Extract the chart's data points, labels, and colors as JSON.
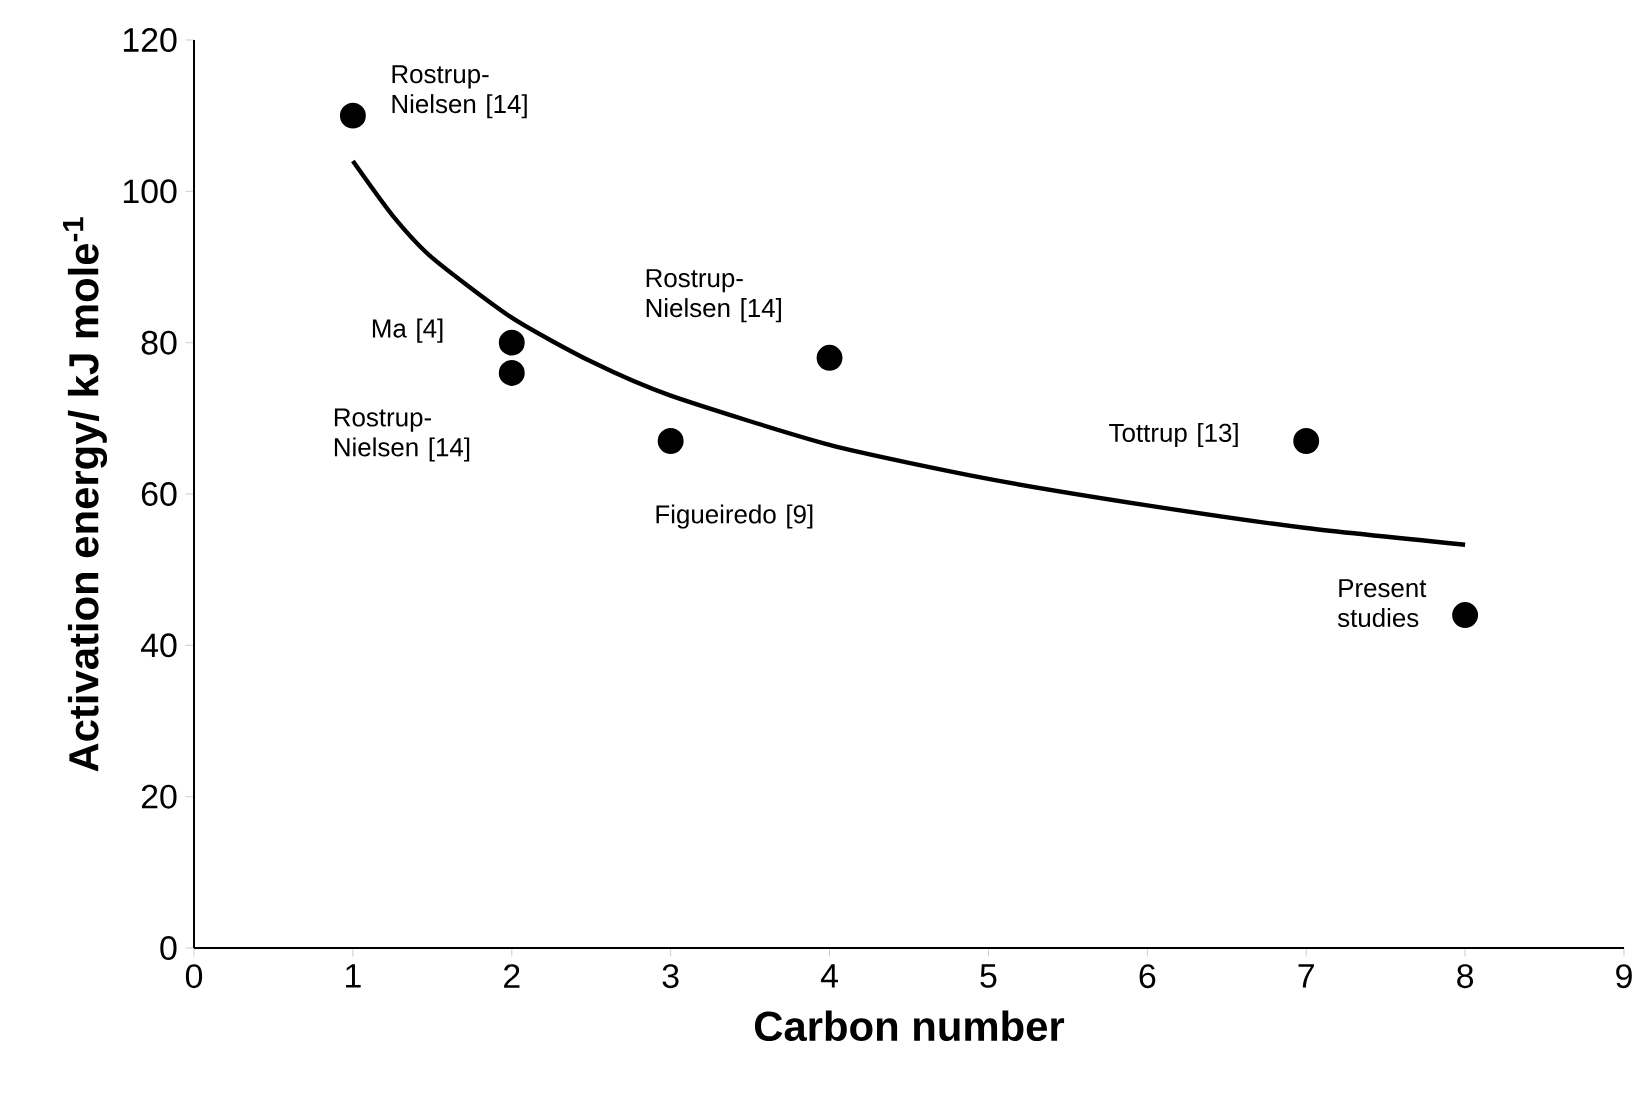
{
  "chart_data": {
    "type": "scatter",
    "xlabel": "Carbon number",
    "ylabel": "Activation energy/ kJ mole$^{-1}$",
    "xlim": [
      0,
      9
    ],
    "xticks": [
      0,
      1,
      2,
      3,
      4,
      5,
      6,
      7,
      8,
      9
    ],
    "ylim": [
      0,
      120
    ],
    "yticks": [
      0,
      20,
      40,
      60,
      80,
      100,
      120
    ],
    "grid": false,
    "series": [
      {
        "color": "#000000",
        "marker": "circle",
        "x": [
          1,
          2,
          2,
          3,
          4,
          7,
          8
        ],
        "values": [
          110,
          80,
          76,
          67,
          78,
          67,
          44
        ]
      },
      {
        "type": "line",
        "marker": "none",
        "color": "#000000",
        "x": [
          1,
          1.25,
          1.5,
          2,
          2.5,
          3,
          4,
          5,
          6,
          7,
          8
        ],
        "values": [
          104,
          96.8,
          91.2,
          83.3,
          77.5,
          73,
          66.5,
          62,
          58.5,
          55.5,
          53.3
        ]
      }
    ],
    "annotations": [
      {
        "text": "Rostrup-Nielsen [14]",
        "x": 1,
        "y": 110
      },
      {
        "text": "Ma [4]",
        "x": 2,
        "y": 80
      },
      {
        "text": "Rostrup-Nielsen [14]",
        "x": 2,
        "y": 76
      },
      {
        "text": "Figueiredo [9]",
        "x": 3,
        "y": 67
      },
      {
        "text": "Rostrup-Nielsen [14]",
        "x": 4,
        "y": 78
      },
      {
        "text": "Tottrup [13]",
        "x": 7,
        "y": 67
      },
      {
        "text": "Present studies",
        "x": 8,
        "y": 44
      }
    ]
  }
}
